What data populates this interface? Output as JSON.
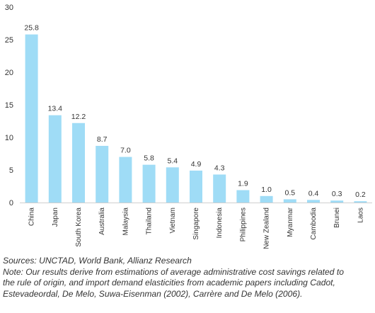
{
  "chart_data": {
    "type": "bar",
    "title": "",
    "xlabel": "",
    "ylabel": "",
    "ylim": [
      0,
      30
    ],
    "yticks": [
      0,
      5,
      10,
      15,
      20,
      25,
      30
    ],
    "grid": false,
    "legend": "none",
    "bar_color": "#9fdcf6",
    "categories": [
      "China",
      "Japan",
      "South Korea",
      "Australia",
      "Malaysia",
      "Thailand",
      "Vietnam",
      "Singapore",
      "Indonesia",
      "Philippines",
      "New Zealand",
      "Myanmar",
      "Cambodia",
      "Brunei",
      "Laos"
    ],
    "values": [
      25.8,
      13.4,
      12.2,
      8.7,
      7.0,
      5.8,
      5.4,
      4.9,
      4.3,
      1.9,
      1.0,
      0.5,
      0.4,
      0.3,
      0.2
    ],
    "value_labels": [
      "25.8",
      "13.4",
      "12.2",
      "8.7",
      "7.0",
      "5.8",
      "5.4",
      "4.9",
      "4.3",
      "1.9",
      "1.0",
      "0.5",
      "0.4",
      "0.3",
      "0.2"
    ]
  },
  "notes": {
    "sources": "Sources: UNCTAD, World Bank, Allianz Research",
    "note_lines": [
      "Note: Our results derive from estimations of average administrative cost savings related to",
      "the rule of origin, and import demand elasticities from academic papers including Cadot,",
      "Estevadeordal, De Melo, Suwa-Eisenman (2002), Carrère and De Melo (2006)."
    ]
  }
}
